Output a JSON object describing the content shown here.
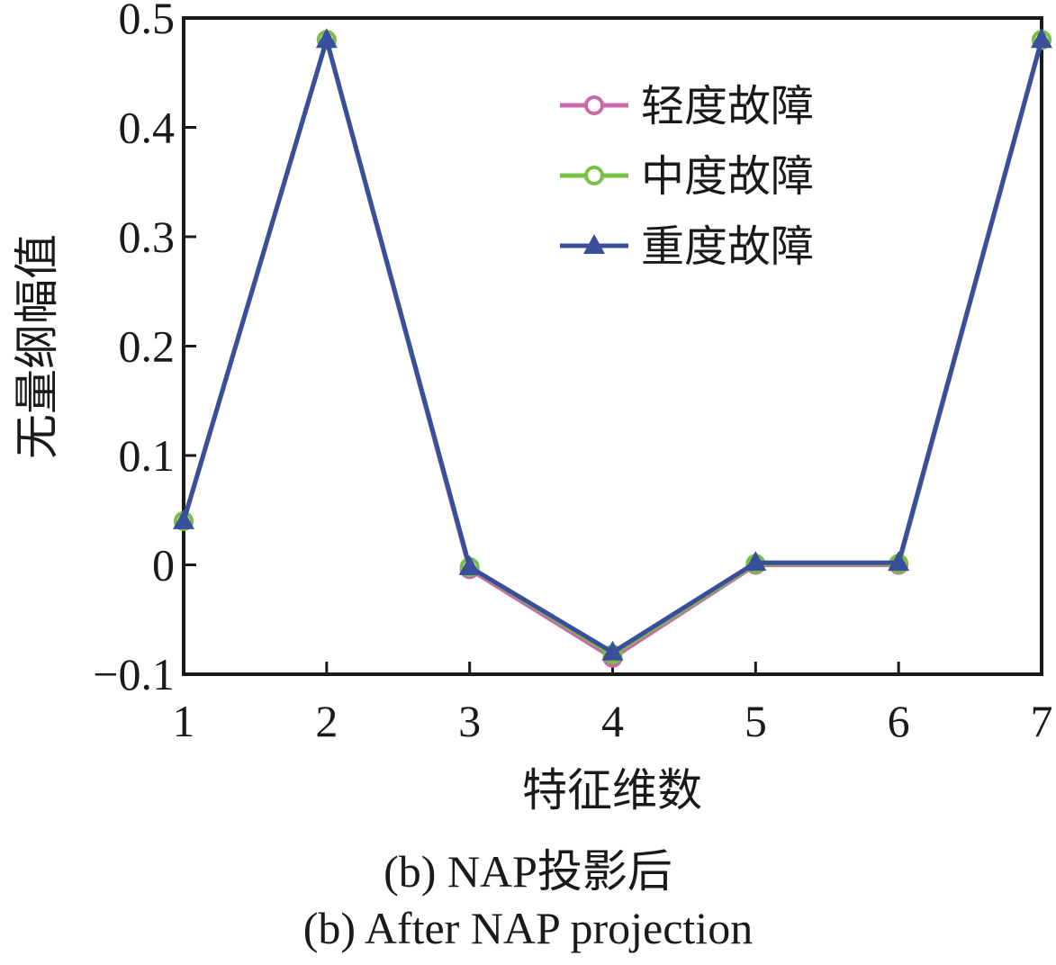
{
  "chart_data": {
    "type": "line",
    "x": [
      1,
      2,
      3,
      4,
      5,
      6,
      7
    ],
    "xlim": [
      1,
      7
    ],
    "ylim": [
      -0.1,
      0.5
    ],
    "xticks": [
      "1",
      "2",
      "3",
      "4",
      "5",
      "6",
      "7"
    ],
    "yticks": [
      {
        "value": 0.5,
        "label": "0.5"
      },
      {
        "value": 0.4,
        "label": "0.4"
      },
      {
        "value": 0.3,
        "label": "0.3"
      },
      {
        "value": 0.2,
        "label": "0.2"
      },
      {
        "value": 0.1,
        "label": "0.1"
      },
      {
        "value": 0,
        "label": "0"
      },
      {
        "value": -0.1,
        "label": "−0.1"
      }
    ],
    "xlabel": "特征维数",
    "ylabel": "无量纲幅值",
    "grid": false,
    "legend_position": "top-right",
    "series": [
      {
        "name": "轻度故障",
        "color": "#c86aa8",
        "marker": "circle",
        "values": [
          0.04,
          0.48,
          -0.004,
          -0.085,
          0.0,
          0.0,
          0.48
        ]
      },
      {
        "name": "中度故障",
        "color": "#77c043",
        "marker": "circle",
        "values": [
          0.04,
          0.48,
          -0.002,
          -0.082,
          0.001,
          0.001,
          0.48
        ]
      },
      {
        "name": "重度故障",
        "color": "#3a4f9c",
        "marker": "triangle",
        "values": [
          0.04,
          0.48,
          -0.002,
          -0.08,
          0.002,
          0.002,
          0.48
        ]
      }
    ]
  },
  "captions": {
    "cn": "(b)  NAP投影后",
    "en": "(b)  After NAP projection"
  }
}
